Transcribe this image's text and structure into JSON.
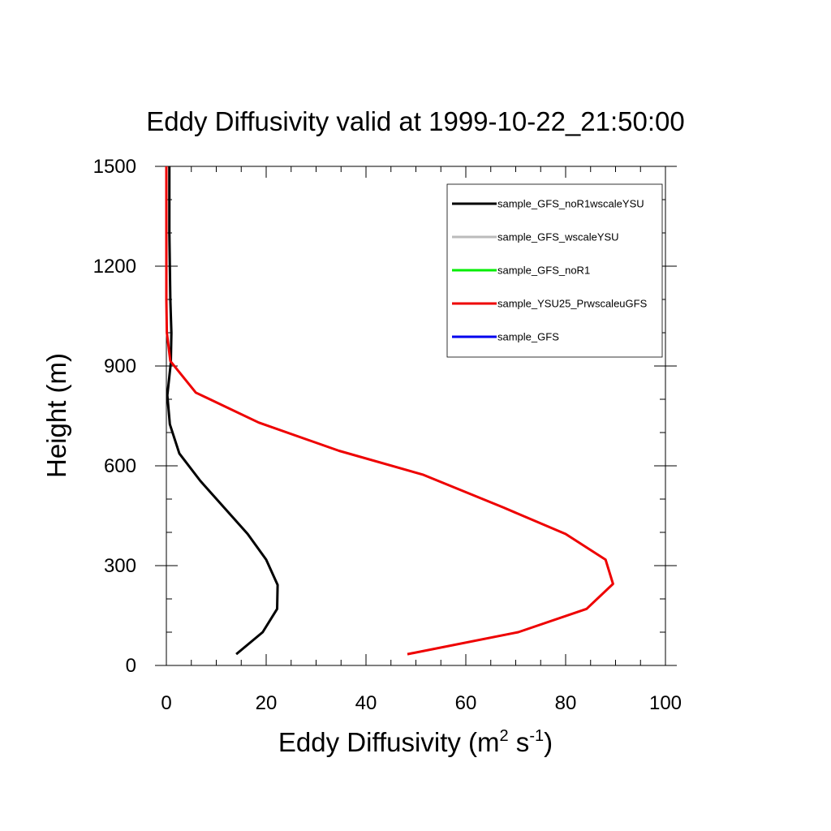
{
  "chart_data": {
    "type": "line",
    "title": "Eddy Diffusivity valid at 1999-10-22_21:50:00",
    "xlabel": {
      "base": "Eddy Diffusivity (m",
      "exp1": "2",
      "mid": " s",
      "exp2": "-1",
      "end": ")"
    },
    "ylabel": "Height (m)",
    "xlim": [
      0,
      100
    ],
    "ylim": [
      0,
      1500
    ],
    "xticks": [
      0,
      20,
      40,
      60,
      80,
      100
    ],
    "yticks": [
      0,
      300,
      600,
      900,
      1200,
      1500
    ],
    "xtick_labels": [
      "0",
      "20",
      "40",
      "60",
      "80",
      "100"
    ],
    "ytick_labels": [
      "0",
      "300",
      "600",
      "900",
      "1200",
      "1500"
    ],
    "grid": false,
    "legend_position": "top-right",
    "series": [
      {
        "name": "sample_GFS_noR1wscaleYSU",
        "color": "#000000",
        "points": [
          [
            14.0,
            34
          ],
          [
            19.3,
            100
          ],
          [
            22.2,
            170
          ],
          [
            22.3,
            242
          ],
          [
            20.0,
            318
          ],
          [
            16.3,
            395
          ],
          [
            6.8,
            555
          ],
          [
            2.6,
            637
          ],
          [
            0.7,
            725
          ],
          [
            0.2,
            812
          ],
          [
            0.9,
            910
          ],
          [
            1.0,
            1000
          ],
          [
            0.8,
            1100
          ],
          [
            0.7,
            1200
          ],
          [
            0.6,
            1300
          ],
          [
            0.6,
            1400
          ],
          [
            0.6,
            1500
          ]
        ]
      },
      {
        "name": "sample_GFS_wscaleYSU",
        "color": "#bbbbbb",
        "points": []
      },
      {
        "name": "sample_GFS_noR1",
        "color": "#00ee00",
        "points": []
      },
      {
        "name": "sample_YSU25_PrwscaleuGFS",
        "color": "#ee0000",
        "points": [
          [
            48.3,
            34
          ],
          [
            70.5,
            100
          ],
          [
            84.2,
            170
          ],
          [
            89.5,
            245
          ],
          [
            88.0,
            318
          ],
          [
            80.0,
            395
          ],
          [
            67.5,
            475
          ],
          [
            51.5,
            573
          ],
          [
            34.6,
            645
          ],
          [
            18.5,
            730
          ],
          [
            5.9,
            820
          ],
          [
            0.8,
            915
          ],
          [
            0.1,
            1000
          ],
          [
            0.0,
            1100
          ],
          [
            0.0,
            1200
          ],
          [
            0.0,
            1300
          ],
          [
            0.0,
            1400
          ],
          [
            0.0,
            1500
          ]
        ]
      },
      {
        "name": "sample_GFS",
        "color": "#0000ee",
        "points": []
      }
    ]
  }
}
